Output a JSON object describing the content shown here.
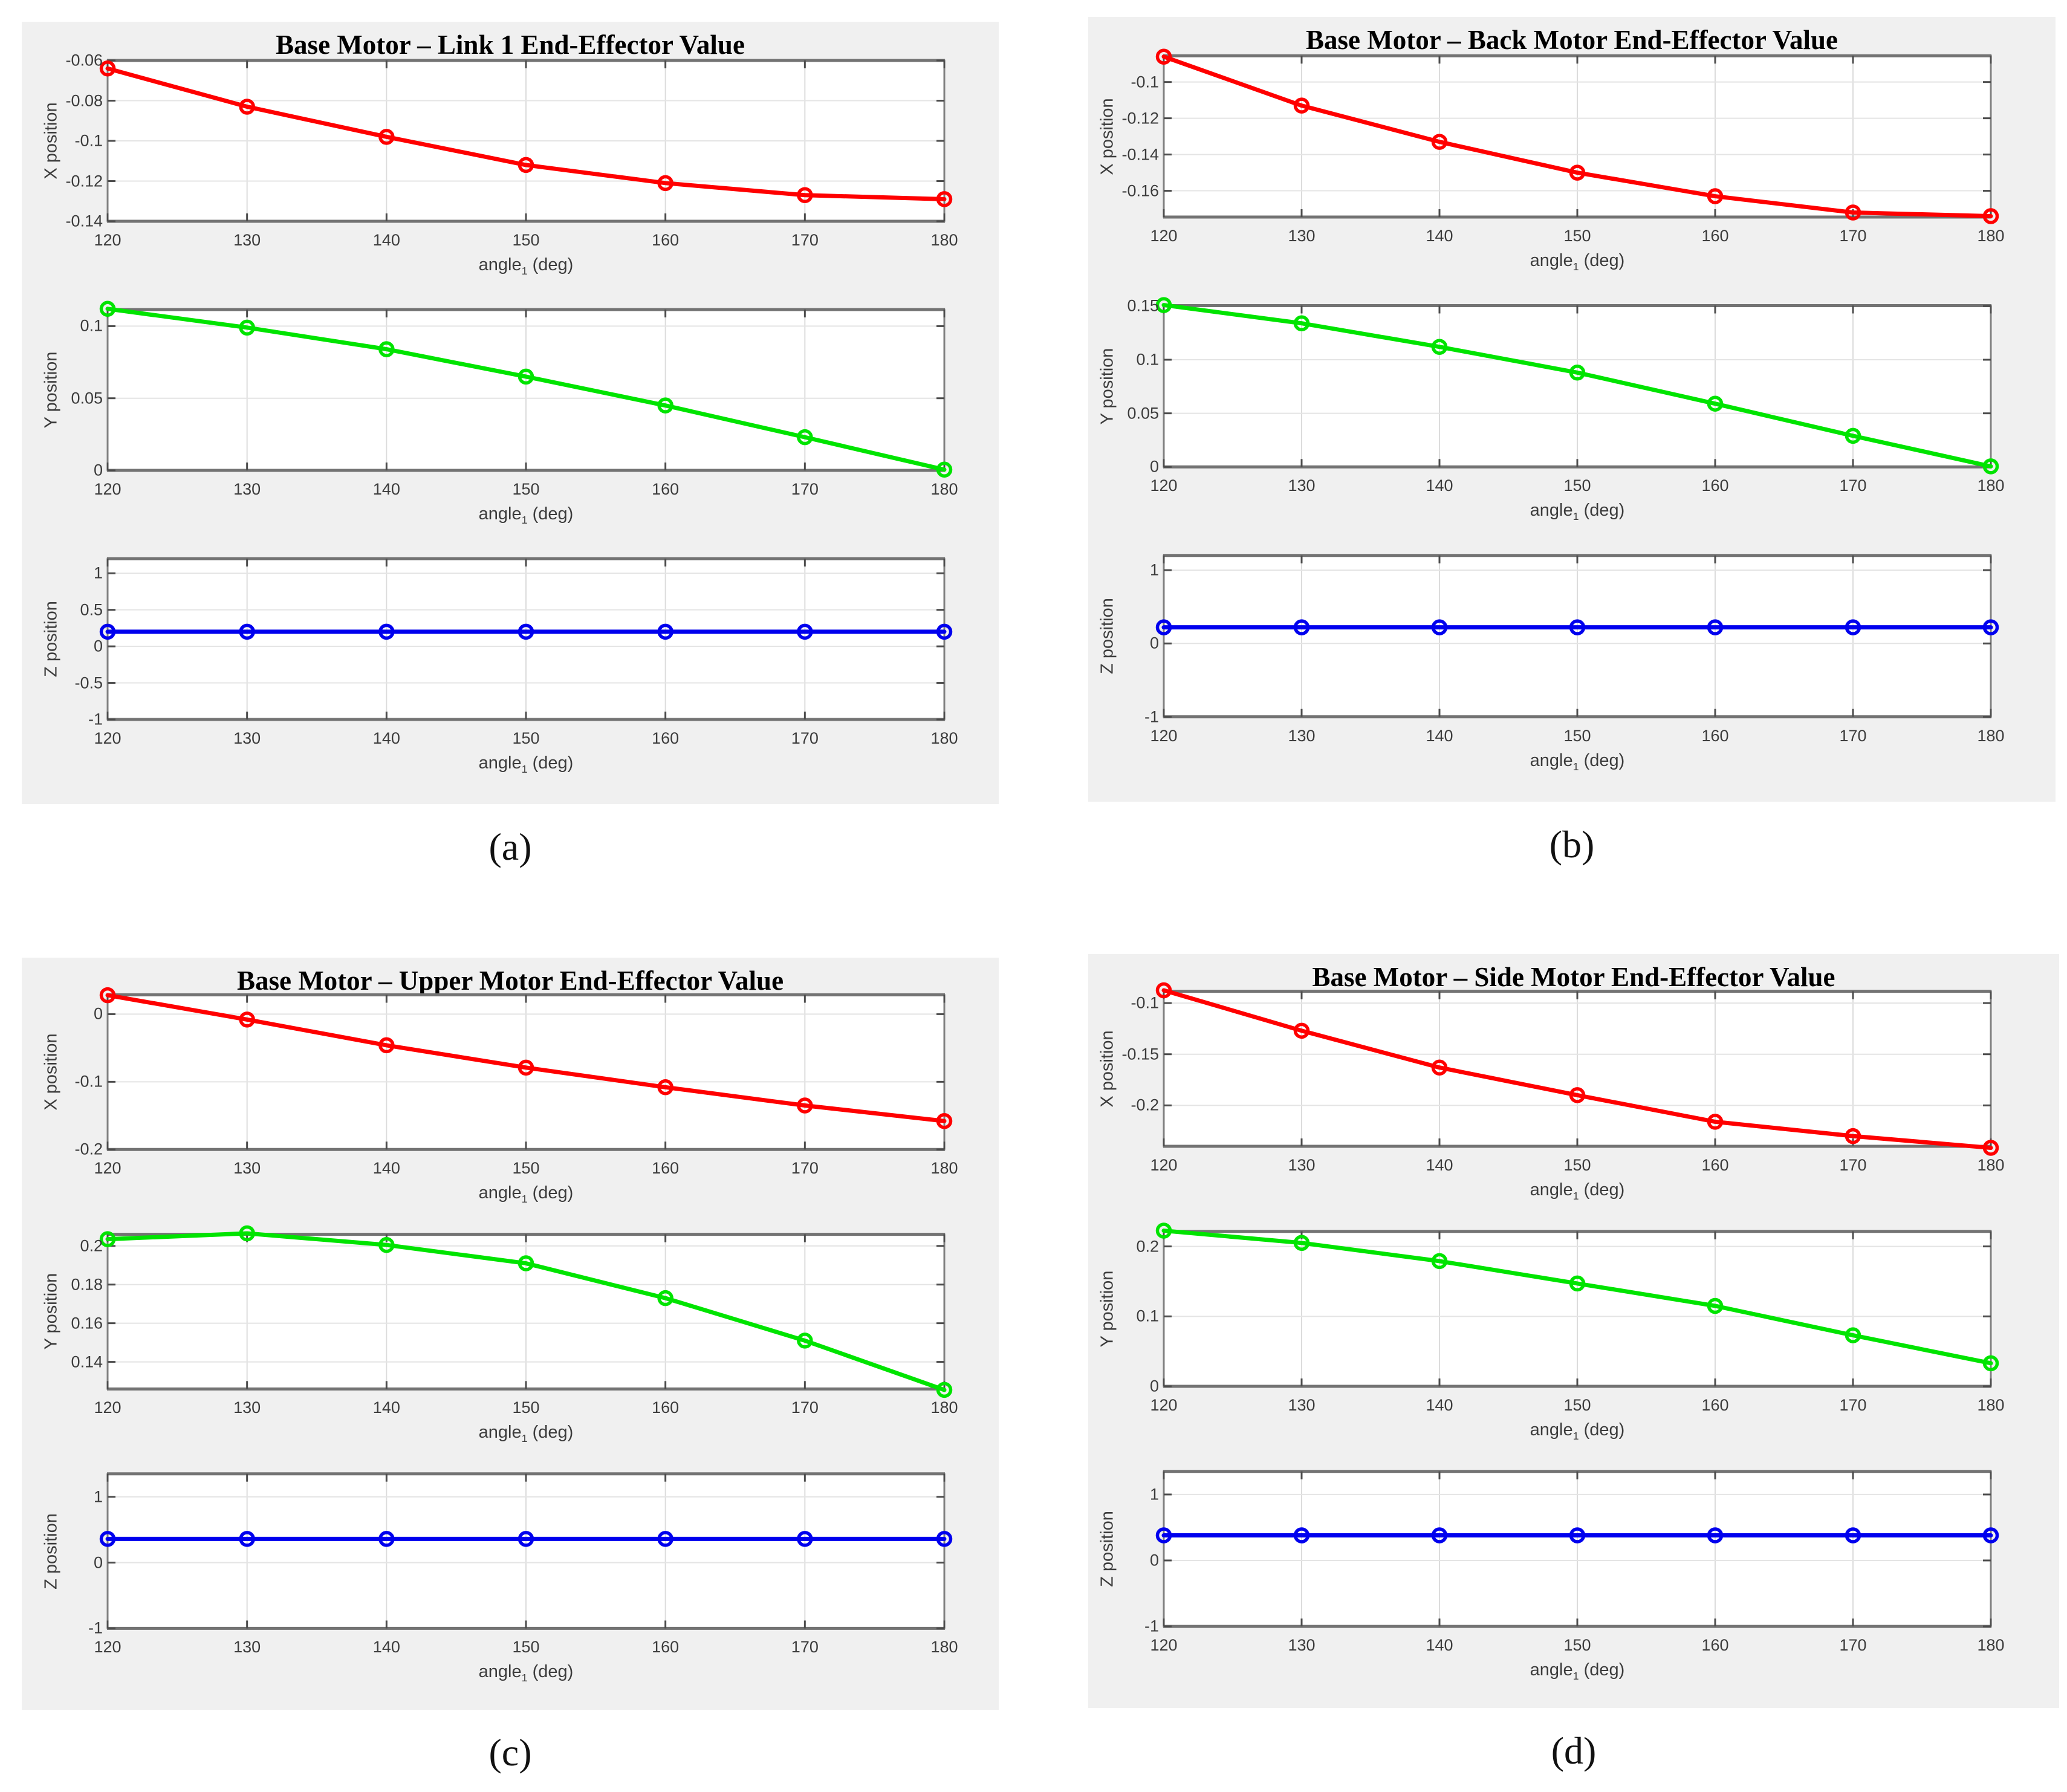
{
  "page": {
    "background": "#ffffff",
    "panel_background": "#f0f0f0",
    "frame_color": "#7f7f7f",
    "grid_color": "#dedede",
    "tick_color": "#4d4d4d",
    "text_color": "#3c3c3c"
  },
  "chart_data": [
    {
      "id": "a",
      "type": "line",
      "caption_label": "(a)",
      "title": "Base Motor – Link 1 End-Effector Value",
      "x_axis_label": "angle_1 (deg)",
      "xlabel": {
        "base": "angle",
        "sub": "1",
        "unit": "(deg)"
      },
      "x": [
        120,
        130,
        140,
        150,
        160,
        170,
        180
      ],
      "x_tick_labels": [
        "120",
        "130",
        "140",
        "150",
        "160",
        "170",
        "180"
      ],
      "xlim": [
        120,
        180
      ],
      "grid": true,
      "legend": "none",
      "subplots": [
        {
          "series": "X position",
          "ylabel": "X position",
          "color": "#ff0000",
          "values": [
            -0.064,
            -0.083,
            -0.098,
            -0.112,
            -0.121,
            -0.127,
            -0.129
          ],
          "ylim": [
            -0.14,
            -0.06
          ],
          "ytick_values": [
            -0.14,
            -0.12,
            -0.1,
            -0.08,
            -0.06
          ],
          "ytick_labels": [
            "-0.14",
            "-0.12",
            "-0.1",
            "-0.08",
            "-0.06"
          ]
        },
        {
          "series": "Y position",
          "ylabel": "Y position",
          "color": "#00e400",
          "values": [
            0.112,
            0.099,
            0.084,
            0.065,
            0.045,
            0.023,
            0.0005
          ],
          "ylim": [
            0,
            0.1115
          ],
          "ytick_values": [
            0,
            0.05,
            0.1
          ],
          "ytick_labels": [
            "0",
            "0.05",
            "0.1"
          ]
        },
        {
          "series": "Z position",
          "ylabel": "Z position",
          "color": "#0000ee",
          "values": [
            0.2,
            0.2,
            0.2,
            0.2,
            0.2,
            0.2,
            0.2
          ],
          "ylim": [
            -1,
            1.2
          ],
          "ytick_values": [
            -1,
            -0.5,
            0,
            0.5,
            1
          ],
          "ytick_labels": [
            "-1",
            "-0.5",
            "0",
            "0.5",
            "1"
          ]
        }
      ]
    },
    {
      "id": "b",
      "type": "line",
      "caption_label": "(b)",
      "title": "Base Motor – Back Motor End-Effector Value",
      "x_axis_label": "angle_1 (deg)",
      "xlabel": {
        "base": "angle",
        "sub": "1",
        "unit": "(deg)"
      },
      "x": [
        120,
        130,
        140,
        150,
        160,
        170,
        180
      ],
      "x_tick_labels": [
        "120",
        "130",
        "140",
        "150",
        "160",
        "170",
        "180"
      ],
      "xlim": [
        120,
        180
      ],
      "grid": true,
      "legend": "none",
      "subplots": [
        {
          "series": "X position",
          "ylabel": "X position",
          "color": "#ff0000",
          "values": [
            -0.086,
            -0.113,
            -0.133,
            -0.15,
            -0.163,
            -0.172,
            -0.174
          ],
          "ylim": [
            -0.1745,
            -0.0855
          ],
          "ytick_values": [
            -0.16,
            -0.14,
            -0.12,
            -0.1
          ],
          "ytick_labels": [
            "-0.16",
            "-0.14",
            "-0.12",
            "-0.1"
          ]
        },
        {
          "series": "Y position",
          "ylabel": "Y position",
          "color": "#00e400",
          "values": [
            0.151,
            0.134,
            0.112,
            0.088,
            0.059,
            0.029,
            0.0005
          ],
          "ylim": [
            0,
            0.1505
          ],
          "ytick_values": [
            0,
            0.05,
            0.1,
            0.15
          ],
          "ytick_labels": [
            "0",
            "0.05",
            "0.1",
            "0.15"
          ]
        },
        {
          "series": "Z position",
          "ylabel": "Z position",
          "color": "#0000ee",
          "values": [
            0.22,
            0.22,
            0.22,
            0.22,
            0.22,
            0.22,
            0.22
          ],
          "ylim": [
            -1,
            1.2
          ],
          "ytick_values": [
            -1,
            0,
            1
          ],
          "ytick_labels": [
            "-1",
            "0",
            "1"
          ]
        }
      ]
    },
    {
      "id": "c",
      "type": "line",
      "caption_label": "(c)",
      "title": "Base Motor – Upper Motor End-Effector Value",
      "x_axis_label": "angle_1 (deg)",
      "xlabel": {
        "base": "angle",
        "sub": "1",
        "unit": "(deg)"
      },
      "x": [
        120,
        130,
        140,
        150,
        160,
        170,
        180
      ],
      "x_tick_labels": [
        "120",
        "130",
        "140",
        "150",
        "160",
        "170",
        "180"
      ],
      "xlim": [
        120,
        180
      ],
      "grid": true,
      "legend": "none",
      "subplots": [
        {
          "series": "X position",
          "ylabel": "X position",
          "color": "#ff0000",
          "values": [
            0.028,
            -0.008,
            -0.046,
            -0.079,
            -0.108,
            -0.135,
            -0.158
          ],
          "ylim": [
            -0.2,
            0.0285
          ],
          "ytick_values": [
            -0.2,
            -0.1,
            0
          ],
          "ytick_labels": [
            "-0.2",
            "-0.1",
            "0"
          ]
        },
        {
          "series": "Y position",
          "ylabel": "Y position",
          "color": "#00e400",
          "values": [
            0.2035,
            0.2065,
            0.2005,
            0.191,
            0.173,
            0.151,
            0.1255
          ],
          "ylim": [
            0.126,
            0.206
          ],
          "ytick_values": [
            0.14,
            0.16,
            0.18,
            0.2
          ],
          "ytick_labels": [
            "0.14",
            "0.16",
            "0.18",
            "0.2"
          ]
        },
        {
          "series": "Z position",
          "ylabel": "Z position",
          "color": "#0000ee",
          "values": [
            0.36,
            0.36,
            0.36,
            0.36,
            0.36,
            0.36,
            0.36
          ],
          "ylim": [
            -1,
            1.35
          ],
          "ytick_values": [
            -1,
            0,
            1
          ],
          "ytick_labels": [
            "-1",
            "0",
            "1"
          ]
        }
      ]
    },
    {
      "id": "d",
      "type": "line",
      "caption_label": "(d)",
      "title": "Base Motor – Side Motor End-Effector Value",
      "x_axis_label": "angle_1 (deg)",
      "xlabel": {
        "base": "angle",
        "sub": "1",
        "unit": "(deg)"
      },
      "x": [
        120,
        130,
        140,
        150,
        160,
        170,
        180
      ],
      "x_tick_labels": [
        "120",
        "130",
        "140",
        "150",
        "160",
        "170",
        "180"
      ],
      "xlim": [
        120,
        180
      ],
      "grid": true,
      "legend": "none",
      "subplots": [
        {
          "series": "X position",
          "ylabel": "X position",
          "color": "#ff0000",
          "values": [
            -0.0875,
            -0.127,
            -0.163,
            -0.19,
            -0.216,
            -0.23,
            -0.2415
          ],
          "ylim": [
            -0.24,
            -0.0885
          ],
          "ytick_values": [
            -0.2,
            -0.15,
            -0.1
          ],
          "ytick_labels": [
            "-0.2",
            "-0.15",
            "-0.1"
          ]
        },
        {
          "series": "Y position",
          "ylabel": "Y position",
          "color": "#00e400",
          "values": [
            0.2225,
            0.205,
            0.179,
            0.147,
            0.115,
            0.073,
            0.033
          ],
          "ylim": [
            0,
            0.2215
          ],
          "ytick_values": [
            0,
            0.1,
            0.2
          ],
          "ytick_labels": [
            "0",
            "0.1",
            "0.2"
          ]
        },
        {
          "series": "Z position",
          "ylabel": "Z position",
          "color": "#0000ee",
          "values": [
            0.38,
            0.38,
            0.38,
            0.38,
            0.38,
            0.38,
            0.38
          ],
          "ylim": [
            -1,
            1.35
          ],
          "ytick_values": [
            -1,
            0,
            1
          ],
          "ytick_labels": [
            "-1",
            "0",
            "1"
          ]
        }
      ]
    }
  ]
}
